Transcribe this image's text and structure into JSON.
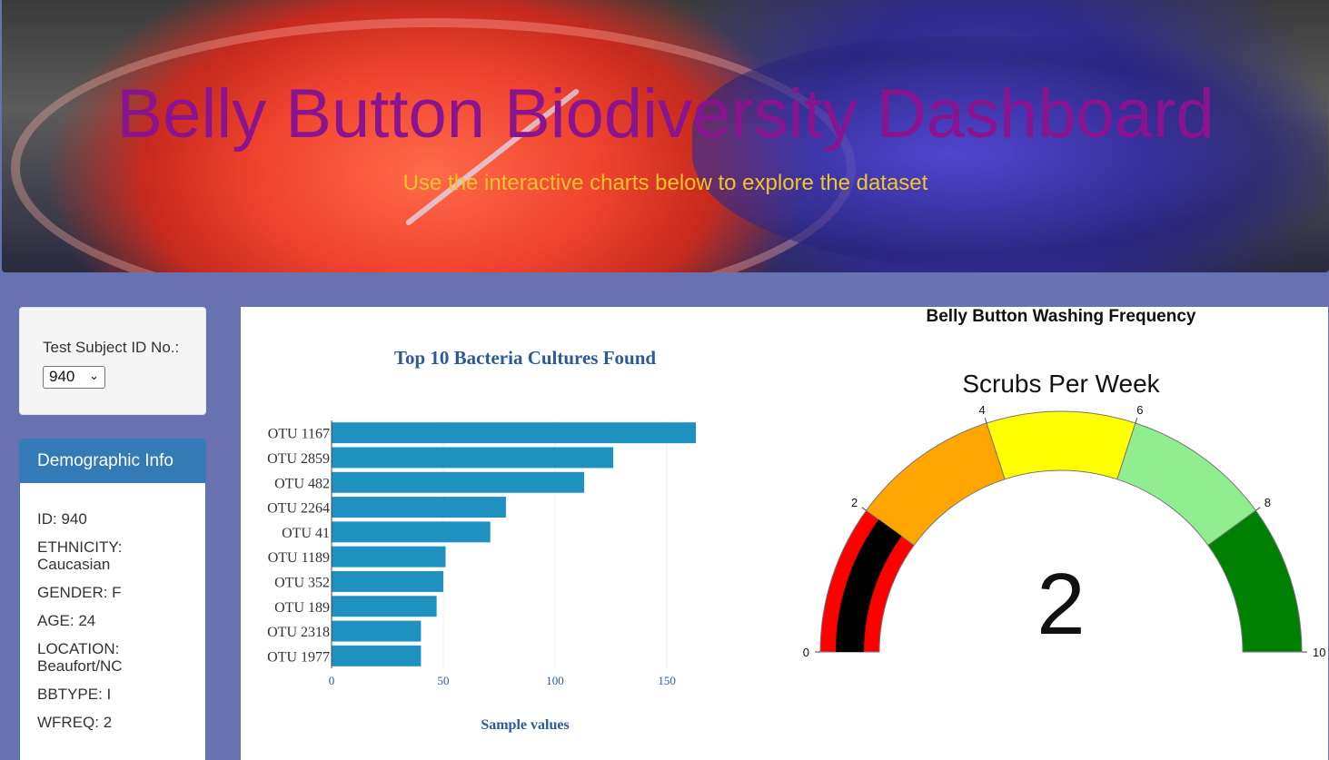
{
  "header": {
    "title": "Belly Button Biodiversity Dashboard",
    "subtitle": "Use the interactive charts below to explore the dataset"
  },
  "selector": {
    "label": "Test Subject ID No.:",
    "selected": "940"
  },
  "demographics": {
    "heading": "Demographic Info",
    "rows": [
      "ID: 940",
      "ETHNICITY: Caucasian",
      "GENDER: F",
      "AGE: 24",
      "LOCATION: Beaufort/NC",
      "BBTYPE: I",
      "WFREQ: 2"
    ]
  },
  "gauge_panel": {
    "title": "Belly Button Washing Frequency"
  },
  "colors": {
    "bar": "#1f91c1",
    "bar_title": "#2b5a9b",
    "gauge_steps": [
      "#ff0000",
      "#ffa500",
      "#ffff00",
      "#90ee90",
      "#008000"
    ],
    "needle": "#000000"
  },
  "chart_data": [
    {
      "type": "bar",
      "orientation": "horizontal",
      "title": "Top 10 Bacteria Cultures Found",
      "xlabel": "Sample values",
      "categories": [
        "OTU 1167",
        "OTU 2859",
        "OTU 482",
        "OTU 2264",
        "OTU 41",
        "OTU 1189",
        "OTU 352",
        "OTU 189",
        "OTU 2318",
        "OTU 1977"
      ],
      "values": [
        163,
        126,
        113,
        78,
        71,
        51,
        50,
        47,
        40,
        40
      ],
      "xlim": [
        0,
        165
      ],
      "xticks": [
        "0",
        "50",
        "100",
        "150"
      ],
      "xtick_values": [
        0,
        50,
        100,
        150
      ],
      "grid": true
    },
    {
      "type": "gauge",
      "title": "Scrubs Per Week",
      "value": 2,
      "value_label": "2",
      "range": [
        0,
        10
      ],
      "steps": [
        [
          0,
          2
        ],
        [
          2,
          4
        ],
        [
          4,
          6
        ],
        [
          6,
          8
        ],
        [
          8,
          10
        ]
      ],
      "ticks": [
        "0",
        "2",
        "4",
        "6",
        "8",
        "10"
      ],
      "tick_values": [
        0,
        2,
        4,
        6,
        8,
        10
      ]
    }
  ]
}
